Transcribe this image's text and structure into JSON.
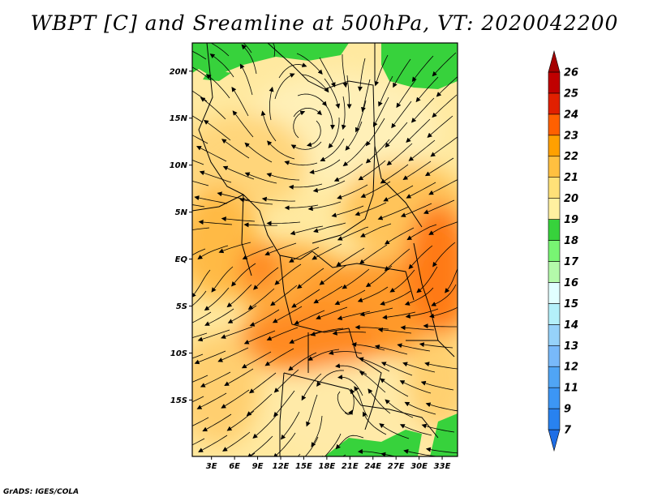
{
  "title": "WBPT [C] and Sreamline at 500hPa, VT: 2020042200",
  "footer": "GrADS: IGES/COLA",
  "map": {
    "lat_range": [
      -21,
      23
    ],
    "lon_range": [
      0.5,
      35
    ],
    "lat_ticks": [
      {
        "value": 20,
        "label": "20N"
      },
      {
        "value": 15,
        "label": "15N"
      },
      {
        "value": 10,
        "label": "10N"
      },
      {
        "value": 5,
        "label": "5N"
      },
      {
        "value": 0,
        "label": "EQ"
      },
      {
        "value": -5,
        "label": "5S"
      },
      {
        "value": -10,
        "label": "10S"
      },
      {
        "value": -15,
        "label": "15S"
      }
    ],
    "lon_ticks": [
      {
        "value": 3,
        "label": "3E"
      },
      {
        "value": 6,
        "label": "6E"
      },
      {
        "value": 9,
        "label": "9E"
      },
      {
        "value": 12,
        "label": "12E"
      },
      {
        "value": 15,
        "label": "15E"
      },
      {
        "value": 18,
        "label": "18E"
      },
      {
        "value": 21,
        "label": "21E"
      },
      {
        "value": 24,
        "label": "24E"
      },
      {
        "value": 27,
        "label": "27E"
      },
      {
        "value": 30,
        "label": "30E"
      },
      {
        "value": 33,
        "label": "33E"
      }
    ]
  },
  "colorbar": {
    "levels": [
      "7",
      "9",
      "11",
      "12",
      "13",
      "14",
      "15",
      "16",
      "17",
      "18",
      "19",
      "20",
      "21",
      "22",
      "23",
      "24",
      "25",
      "26"
    ],
    "colors": [
      "#1e6ee6",
      "#2882f0",
      "#3c96f5",
      "#50a5f5",
      "#78b9fa",
      "#96d2fa",
      "#b4f0fa",
      "#e1ffff",
      "#b4faaa",
      "#78f573",
      "#37d23c",
      "#fff0a0",
      "#ffe178",
      "#ffc040",
      "#ffa000",
      "#ff6000",
      "#e12000",
      "#c00000",
      "#a50000"
    ]
  }
}
